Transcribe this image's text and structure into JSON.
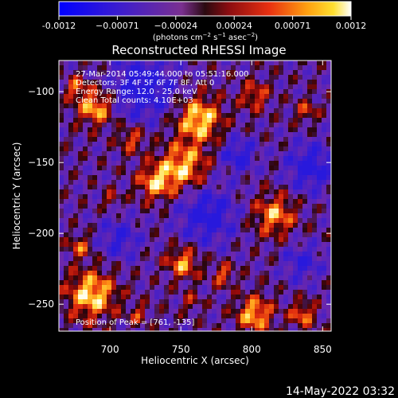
{
  "colorbar": {
    "ticks": [
      "-0.0012",
      "−0.00071",
      "−0.00024",
      "0.00024",
      "0.00071",
      "0.0012"
    ],
    "label_main": "(photons cm",
    "label_exp1": "−2",
    "label_mid": " s",
    "label_exp2": "−1",
    "label_mid2": " asec",
    "label_exp3": "−2",
    "label_end": ")"
  },
  "chart_data": {
    "type": "heatmap",
    "title": "Reconstructed RHESSI Image",
    "xlabel": "Heliocentric X (arcsec)",
    "ylabel": "Heliocentric Y (arcsec)",
    "xlim": [
      664,
      856
    ],
    "ylim": [
      -269,
      -78
    ],
    "xticks": [
      700,
      750,
      800,
      850
    ],
    "yticks": [
      -100,
      -150,
      -200,
      -250
    ],
    "colorbar_range": [
      -0.0012,
      0.0012
    ],
    "colormap": "blue-purple-red-yellow-white (RHESSI symmetric)",
    "annotations": [
      "27-Mar-2014 05:49:44.000 to 05:51:16.000",
      "Detectors: 3F 4F 5F 6F 7F 8F, Att 0",
      "Energy Range: 12.0 - 25.0 keV",
      "Clean     Total counts: 4.10E+03",
      "Position of Peak = [761, -135]"
    ],
    "peak": {
      "x": 761,
      "y": -135
    }
  },
  "footer": {
    "timestamp": "14-May-2022 03:32"
  }
}
